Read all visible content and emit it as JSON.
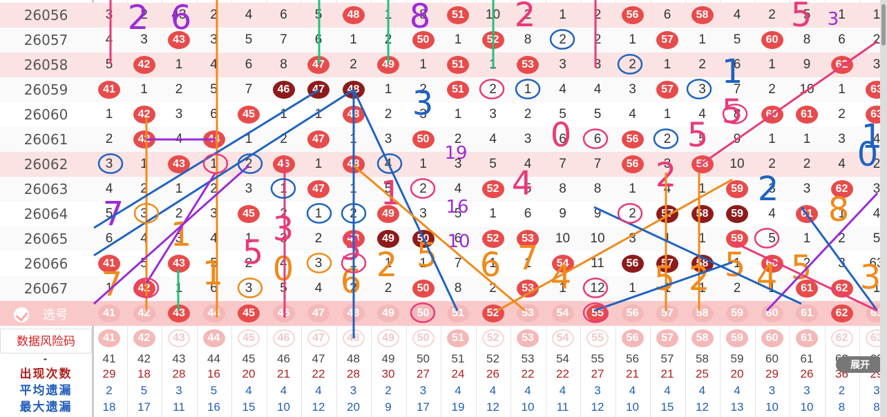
{
  "columns": [
    41,
    42,
    43,
    44,
    45,
    46,
    47,
    48,
    49,
    50,
    51,
    52,
    53,
    54,
    55,
    56,
    57,
    58,
    59,
    60,
    61,
    62,
    63
  ],
  "rows": [
    {
      "issue": "26056",
      "cells": [
        "3",
        "2",
        "43",
        "2",
        "4",
        "6",
        "5",
        "48",
        "1",
        "8",
        "51",
        "10",
        "2",
        "1",
        "2",
        "56",
        "6",
        "58",
        "4",
        "2",
        "5",
        "1",
        "1"
      ],
      "hl": true
    },
    {
      "issue": "26057",
      "cells": [
        "4",
        "3",
        "43",
        "3",
        "5",
        "7",
        "6",
        "1",
        "2",
        "50",
        "1",
        "52",
        "8",
        "2",
        "2",
        "1",
        "57",
        "1",
        "5",
        "60",
        "8",
        "6",
        "2"
      ]
    },
    {
      "issue": "26058",
      "cells": [
        "5",
        "42",
        "1",
        "4",
        "6",
        "8",
        "47",
        "2",
        "49",
        "1",
        "51",
        "1",
        "53",
        "3",
        "3",
        "2",
        "1",
        "2",
        "6",
        "1",
        "9",
        "62",
        "3"
      ],
      "hl": true
    },
    {
      "issue": "26059",
      "cells": [
        "41",
        "1",
        "2",
        "5",
        "7",
        "46",
        "47",
        "48",
        "1",
        "2",
        "51",
        "2",
        "1",
        "4",
        "4",
        "3",
        "57",
        "3",
        "7",
        "2",
        "10",
        "1",
        "63"
      ]
    },
    {
      "issue": "26060",
      "cells": [
        "1",
        "42",
        "3",
        "6",
        "45",
        "1",
        "1",
        "48",
        "2",
        "3",
        "1",
        "3",
        "2",
        "5",
        "5",
        "4",
        "1",
        "4",
        "8",
        "60",
        "61",
        "2",
        "63"
      ]
    },
    {
      "issue": "26061",
      "cells": [
        "2",
        "42",
        "4",
        "44",
        "1",
        "2",
        "47",
        "1",
        "3",
        "50",
        "2",
        "4",
        "3",
        "6",
        "6",
        "56",
        "2",
        "5",
        "9",
        "1",
        "1",
        "3",
        "4"
      ]
    },
    {
      "issue": "26062",
      "cells": [
        "3",
        "1",
        "43",
        "1",
        "2",
        "46",
        "1",
        "48",
        "4",
        "1",
        "3",
        "5",
        "4",
        "7",
        "7",
        "56",
        "3",
        "58",
        "10",
        "2",
        "2",
        "4",
        "2"
      ],
      "hl": true
    },
    {
      "issue": "26063",
      "cells": [
        "4",
        "2",
        "1",
        "2",
        "3",
        "1",
        "47",
        "1",
        "5",
        "2",
        "4",
        "52",
        "5",
        "8",
        "8",
        "1",
        "4",
        "1",
        "59",
        "3",
        "3",
        "62",
        "3"
      ]
    },
    {
      "issue": "26064",
      "cells": [
        "5",
        "3",
        "2",
        "3",
        "45",
        "2",
        "1",
        "2",
        "49",
        "3",
        "5",
        "1",
        "6",
        "9",
        "9",
        "2",
        "57",
        "58",
        "59",
        "4",
        "61",
        "1",
        "4"
      ]
    },
    {
      "issue": "26065",
      "cells": [
        "6",
        "4",
        "3",
        "4",
        "1",
        "3",
        "2",
        "48",
        "49",
        "50",
        "6",
        "52",
        "53",
        "10",
        "10",
        "3",
        "1",
        "1",
        "59",
        "5",
        "1",
        "2",
        "5"
      ]
    },
    {
      "issue": "26066",
      "cells": [
        "41",
        "5",
        "43",
        "5",
        "2",
        "4",
        "3",
        "1",
        "1",
        "1",
        "7",
        "1",
        "1",
        "54",
        "11",
        "56",
        "57",
        "58",
        "1",
        "60",
        "2",
        "3",
        "63"
      ]
    },
    {
      "issue": "26067",
      "cells": [
        "1",
        "42",
        "1",
        "6",
        "3",
        "5",
        "4",
        "2",
        "2",
        "50",
        "8",
        "2",
        "53",
        "1",
        "12",
        "1",
        "1",
        "1",
        "2",
        "1",
        "61",
        "62",
        "1"
      ]
    }
  ],
  "balls_red": [
    "26056:48",
    "26056:51",
    "26056:56",
    "26056:58",
    "26057:43",
    "26057:50",
    "26057:52",
    "26057:57",
    "26057:60",
    "26058:42",
    "26058:47",
    "26058:49",
    "26058:51",
    "26058:53",
    "26058:62",
    "26059:41",
    "26059:51",
    "26059:57",
    "26059:63",
    "26060:42",
    "26060:45",
    "26060:48",
    "26060:60",
    "26060:61",
    "26060:63",
    "26061:42",
    "26061:44",
    "26061:47",
    "26061:50",
    "26061:56",
    "26062:43",
    "26062:46",
    "26062:48",
    "26062:56",
    "26062:58",
    "26063:47",
    "26063:52",
    "26063:59",
    "26063:62",
    "26064:45",
    "26064:49",
    "26064:61",
    "26065:48",
    "26065:52",
    "26065:53",
    "26065:59",
    "26066:41",
    "26066:43",
    "26066:54",
    "26066:60",
    "26067:42",
    "26067:50",
    "26067:53",
    "26067:61",
    "26067:62"
  ],
  "balls_dark": [
    "26059:46",
    "26059:47",
    "26059:48",
    "26064:57",
    "26064:58",
    "26064:59",
    "26065:49",
    "26065:50",
    "26066:56",
    "26066:57",
    "26066:58"
  ],
  "select_row": {
    "label": "选号",
    "balls": [
      "41",
      "42",
      "43",
      "44",
      "45",
      "46",
      "47",
      "48",
      "49",
      "50",
      "51",
      "52",
      "53",
      "54",
      "55",
      "56",
      "57",
      "58",
      "59",
      "60",
      "61",
      "62",
      "63"
    ],
    "active": [
      "43",
      "45",
      "52",
      "55",
      "62"
    ]
  },
  "pick_row": {
    "balls": [
      "41",
      "42",
      "43",
      "44",
      "45",
      "46",
      "47",
      "48",
      "49",
      "50",
      "51",
      "52",
      "53",
      "54",
      "55",
      "56",
      "57",
      "58",
      "59",
      "60",
      "61",
      "62",
      "63"
    ],
    "active": [
      "41",
      "42",
      "44",
      "51",
      "53",
      "56",
      "57",
      "58",
      "59",
      "60",
      "61"
    ]
  },
  "risk_label": "数据风险码",
  "expand_label": "展开",
  "stats_header": "-",
  "stats": [
    {
      "label": "出现次数",
      "color": "red",
      "values": [
        "29",
        "18",
        "28",
        "16",
        "20",
        "21",
        "22",
        "28",
        "30",
        "27",
        "24",
        "26",
        "22",
        "22",
        "27",
        "21",
        "21",
        "25",
        "20",
        "29",
        "26",
        "36",
        "29"
      ]
    },
    {
      "label": "平均遗漏",
      "color": "blue",
      "values": [
        "2",
        "5",
        "3",
        "5",
        "4",
        "4",
        "4",
        "3",
        "2",
        "3",
        "4",
        "4",
        "4",
        "4",
        "3",
        "4",
        "4",
        "4",
        "4",
        "3",
        "3",
        "2",
        "3"
      ]
    },
    {
      "label": "最大遗漏",
      "color": "blue",
      "values": [
        "18",
        "17",
        "11",
        "16",
        "15",
        "10",
        "12",
        "20",
        "9",
        "17",
        "19",
        "12",
        "10",
        "11",
        "12",
        "10",
        "15",
        "12",
        "13",
        "10",
        "10",
        "8",
        "8"
      ]
    }
  ],
  "annotations": {
    "numbers": [
      "2",
      "6",
      "8",
      "2",
      "5",
      "1",
      "5",
      "3",
      "0",
      "5",
      "2",
      "4",
      "2",
      "1",
      "1",
      "7",
      "5",
      "3",
      "0",
      "1",
      "7",
      "6",
      "2",
      "5",
      "6",
      "7",
      "4",
      "5",
      "2",
      "5",
      "4",
      "5",
      "8",
      "3",
      "19",
      "16",
      "10",
      "3",
      "3",
      "1",
      "0",
      "4",
      "5"
    ]
  },
  "colors": {
    "highlight_row": "#fbe3e3",
    "select_row": "#f9c9c9",
    "red_ball": "#e84b4b",
    "dark_ball": "#8e1b1b",
    "stats_red": "#b02020",
    "stats_blue": "#1f5db8"
  }
}
